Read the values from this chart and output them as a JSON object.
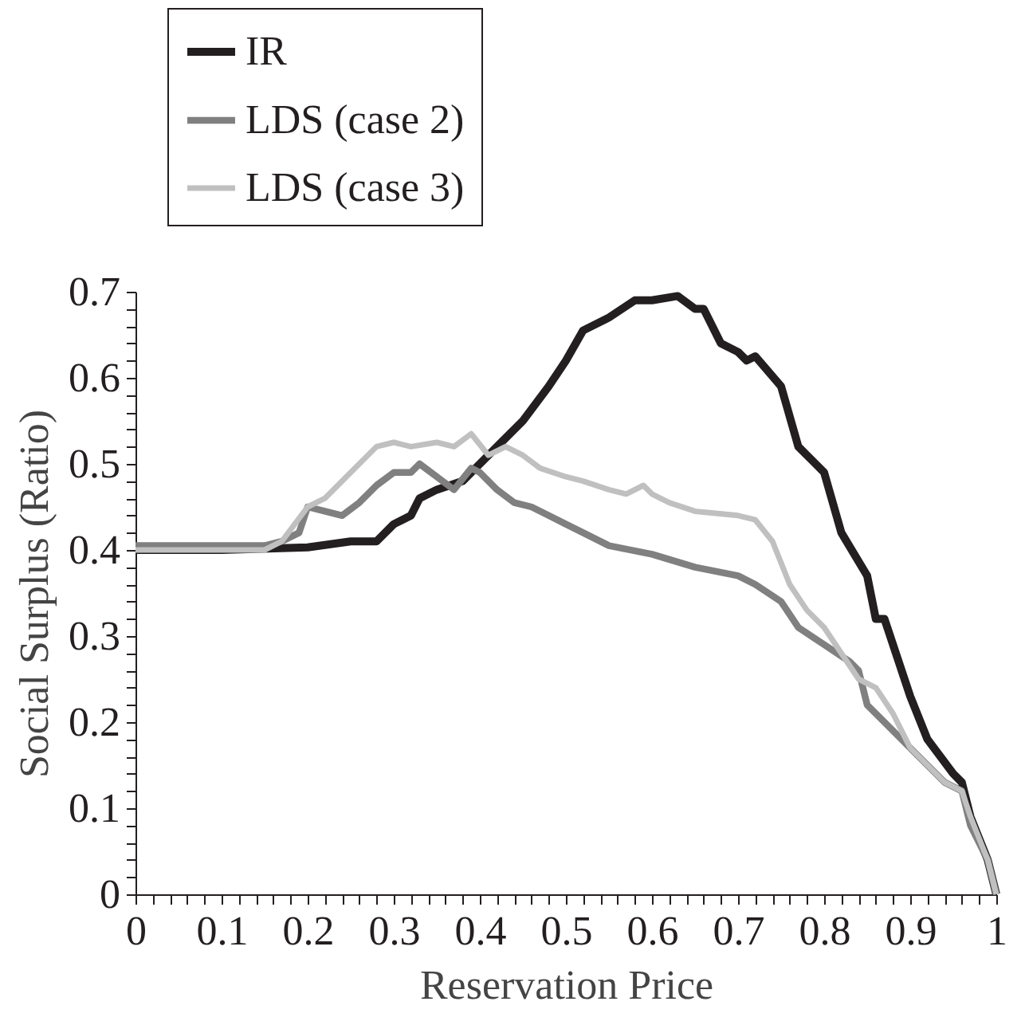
{
  "chart_data": {
    "type": "line",
    "xlabel": "Reservation Price",
    "ylabel": "Social Surplus (Ratio)",
    "legend": "top left",
    "grid": false,
    "marker": "none",
    "line_style": "solid",
    "xlim": [
      0,
      1
    ],
    "ylim": [
      0,
      0.7
    ],
    "xticks": [
      0,
      {
        "value": 0.02,
        "label": null
      },
      {
        "value": 0.04,
        "label": null
      },
      {
        "value": 0.06,
        "label": null
      },
      {
        "value": 0.08,
        "label": null
      },
      0.1,
      {
        "value": 0.12,
        "label": null
      },
      {
        "value": 0.14,
        "label": null
      },
      {
        "value": 0.16,
        "label": null
      },
      {
        "value": 0.18,
        "label": null
      },
      0.2,
      {
        "value": 0.22,
        "label": null
      },
      {
        "value": 0.24,
        "label": null
      },
      {
        "value": 0.26,
        "label": null
      },
      {
        "value": 0.28,
        "label": null
      },
      0.3,
      {
        "value": 0.32,
        "label": null
      },
      {
        "value": 0.34,
        "label": null
      },
      {
        "value": 0.36,
        "label": null
      },
      {
        "value": 0.38,
        "label": null
      },
      0.4,
      {
        "value": 0.42,
        "label": null
      },
      {
        "value": 0.44,
        "label": null
      },
      {
        "value": 0.46,
        "label": null
      },
      {
        "value": 0.48,
        "label": null
      },
      0.5,
      {
        "value": 0.52,
        "label": null
      },
      {
        "value": 0.54,
        "label": null
      },
      {
        "value": 0.56,
        "label": null
      },
      {
        "value": 0.58,
        "label": null
      },
      0.6,
      {
        "value": 0.62,
        "label": null
      },
      {
        "value": 0.64,
        "label": null
      },
      {
        "value": 0.66,
        "label": null
      },
      {
        "value": 0.68,
        "label": null
      },
      0.7,
      {
        "value": 0.72,
        "label": null
      },
      {
        "value": 0.74,
        "label": null
      },
      {
        "value": 0.76,
        "label": null
      },
      {
        "value": 0.78,
        "label": null
      },
      0.8,
      {
        "value": 0.82,
        "label": null
      },
      {
        "value": 0.84,
        "label": null
      },
      {
        "value": 0.86,
        "label": null
      },
      {
        "value": 0.88,
        "label": null
      },
      0.9,
      {
        "value": 0.92,
        "label": null
      },
      {
        "value": 0.94,
        "label": null
      },
      {
        "value": 0.96,
        "label": null
      },
      {
        "value": 0.98,
        "label": null
      },
      1
    ],
    "yticks": [
      0,
      {
        "value": 0.02,
        "label": null
      },
      {
        "value": 0.04,
        "label": null
      },
      {
        "value": 0.06,
        "label": null
      },
      {
        "value": 0.08,
        "label": null
      },
      0.1,
      {
        "value": 0.12,
        "label": null
      },
      {
        "value": 0.14,
        "label": null
      },
      {
        "value": 0.16,
        "label": null
      },
      {
        "value": 0.18,
        "label": null
      },
      0.2,
      {
        "value": 0.22,
        "label": null
      },
      {
        "value": 0.24,
        "label": null
      },
      {
        "value": 0.26,
        "label": null
      },
      {
        "value": 0.28,
        "label": null
      },
      0.3,
      {
        "value": 0.32,
        "label": null
      },
      {
        "value": 0.34,
        "label": null
      },
      {
        "value": 0.36,
        "label": null
      },
      {
        "value": 0.38,
        "label": null
      },
      0.4,
      {
        "value": 0.42,
        "label": null
      },
      {
        "value": 0.44,
        "label": null
      },
      {
        "value": 0.46,
        "label": null
      },
      {
        "value": 0.48,
        "label": null
      },
      0.5,
      {
        "value": 0.52,
        "label": null
      },
      {
        "value": 0.54,
        "label": null
      },
      {
        "value": 0.56,
        "label": null
      },
      {
        "value": 0.58,
        "label": null
      },
      0.6,
      {
        "value": 0.62,
        "label": null
      },
      {
        "value": 0.64,
        "label": null
      },
      {
        "value": 0.66,
        "label": null
      },
      {
        "value": 0.68,
        "label": null
      },
      0.7
    ],
    "series": [
      {
        "name": "IR",
        "color": "#231f20",
        "x": [
          0,
          0.1,
          0.2,
          0.25,
          0.28,
          0.3,
          0.32,
          0.33,
          0.35,
          0.38,
          0.4,
          0.42,
          0.45,
          0.48,
          0.5,
          0.52,
          0.55,
          0.58,
          0.6,
          0.63,
          0.65,
          0.66,
          0.68,
          0.7,
          0.71,
          0.72,
          0.75,
          0.77,
          0.8,
          0.82,
          0.85,
          0.86,
          0.87,
          0.9,
          0.92,
          0.95,
          0.96,
          0.97,
          0.99,
          1
        ],
        "values": [
          0.4,
          0.4,
          0.403,
          0.41,
          0.41,
          0.43,
          0.44,
          0.46,
          0.47,
          0.48,
          0.5,
          0.52,
          0.55,
          0.59,
          0.62,
          0.655,
          0.67,
          0.69,
          0.69,
          0.695,
          0.68,
          0.68,
          0.64,
          0.63,
          0.62,
          0.625,
          0.59,
          0.52,
          0.49,
          0.42,
          0.37,
          0.32,
          0.32,
          0.23,
          0.18,
          0.14,
          0.13,
          0.09,
          0.04,
          0
        ]
      },
      {
        "name": "LDS (case 2)",
        "color": "#808080",
        "x": [
          0,
          0.15,
          0.17,
          0.19,
          0.2,
          0.22,
          0.24,
          0.26,
          0.28,
          0.3,
          0.32,
          0.33,
          0.35,
          0.37,
          0.39,
          0.4,
          0.42,
          0.44,
          0.46,
          0.48,
          0.5,
          0.52,
          0.55,
          0.6,
          0.65,
          0.7,
          0.72,
          0.75,
          0.77,
          0.8,
          0.83,
          0.84,
          0.85,
          0.87,
          0.9,
          0.92,
          0.94,
          0.96,
          0.97,
          0.99,
          1
        ],
        "values": [
          0.405,
          0.405,
          0.41,
          0.42,
          0.45,
          0.445,
          0.44,
          0.455,
          0.475,
          0.49,
          0.49,
          0.5,
          0.485,
          0.47,
          0.495,
          0.49,
          0.47,
          0.455,
          0.45,
          0.44,
          0.43,
          0.42,
          0.405,
          0.395,
          0.38,
          0.37,
          0.36,
          0.34,
          0.31,
          0.29,
          0.27,
          0.26,
          0.22,
          0.2,
          0.17,
          0.15,
          0.13,
          0.12,
          0.08,
          0.04,
          0
        ]
      },
      {
        "name": "LDS (case 3)",
        "color": "#c0c0c0",
        "x": [
          0,
          0.15,
          0.17,
          0.2,
          0.22,
          0.25,
          0.28,
          0.3,
          0.32,
          0.35,
          0.37,
          0.39,
          0.41,
          0.43,
          0.45,
          0.47,
          0.5,
          0.52,
          0.55,
          0.57,
          0.59,
          0.6,
          0.62,
          0.65,
          0.7,
          0.72,
          0.74,
          0.76,
          0.78,
          0.8,
          0.84,
          0.86,
          0.88,
          0.9,
          0.94,
          0.96,
          0.97,
          0.99,
          1
        ],
        "values": [
          0.4,
          0.4,
          0.41,
          0.45,
          0.46,
          0.49,
          0.52,
          0.525,
          0.52,
          0.525,
          0.52,
          0.535,
          0.51,
          0.52,
          0.51,
          0.495,
          0.485,
          0.48,
          0.47,
          0.465,
          0.475,
          0.465,
          0.455,
          0.445,
          0.44,
          0.435,
          0.41,
          0.36,
          0.33,
          0.31,
          0.25,
          0.24,
          0.21,
          0.17,
          0.13,
          0.12,
          0.09,
          0.04,
          0
        ]
      }
    ]
  }
}
